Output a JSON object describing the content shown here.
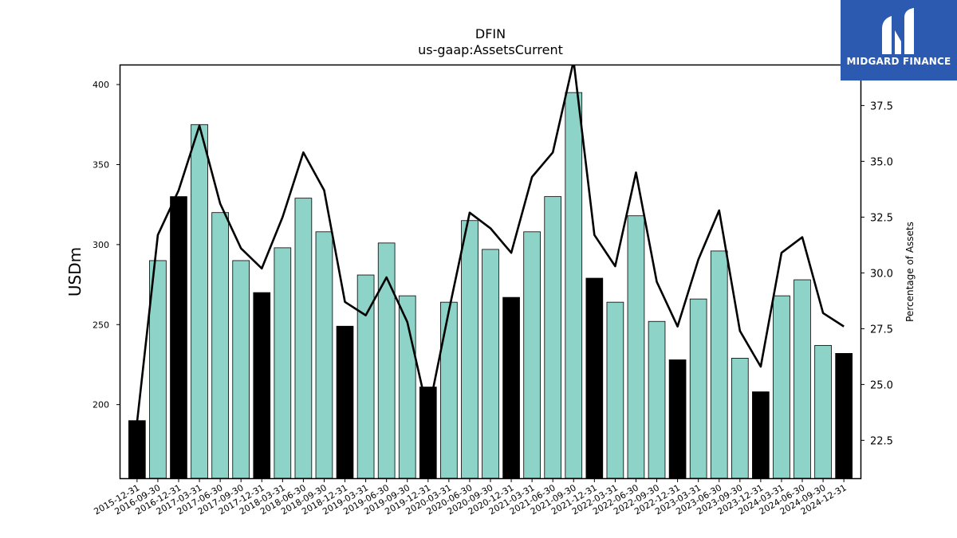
{
  "chart_data": {
    "type": "bar+line",
    "title": "DFIN",
    "subtitle": "us-gaap:AssetsCurrent",
    "ylabel": "USDm",
    "y2label": "Percentage of Assets",
    "ylim": [
      154,
      412
    ],
    "y2lim": [
      20.8,
      39.3
    ],
    "yticks": [
      200,
      250,
      300,
      350,
      400
    ],
    "y2ticks": [
      22.5,
      25.0,
      27.5,
      30.0,
      32.5,
      35.0,
      37.5
    ],
    "categories": [
      "2015-12-31",
      "2016-09-30",
      "2016-12-31",
      "2017-03-31",
      "2017-06-30",
      "2017-09-30",
      "2017-12-31",
      "2018-03-31",
      "2018-06-30",
      "2018-09-30",
      "2018-12-31",
      "2019-03-31",
      "2019-06-30",
      "2019-09-30",
      "2019-12-31",
      "2020-03-31",
      "2020-06-30",
      "2020-09-30",
      "2020-12-31",
      "2021-03-31",
      "2021-06-30",
      "2021-09-30",
      "2021-12-31",
      "2022-03-31",
      "2022-06-30",
      "2022-09-30",
      "2022-12-31",
      "2023-03-31",
      "2023-06-30",
      "2023-09-30",
      "2023-12-31",
      "2024-03-31",
      "2024-06-30",
      "2024-09-30",
      "2024-12-31"
    ],
    "series": [
      {
        "type": "bar",
        "values": [
          190,
          290,
          330,
          375,
          320,
          290,
          270,
          298,
          329,
          308,
          249,
          281,
          301,
          268,
          211,
          264,
          315,
          297,
          267,
          308,
          330,
          395,
          279,
          264,
          318,
          252,
          228,
          266,
          296,
          229,
          208,
          268,
          278,
          237,
          232
        ],
        "year_end": [
          true,
          false,
          true,
          false,
          false,
          false,
          true,
          false,
          false,
          false,
          true,
          false,
          false,
          false,
          true,
          false,
          false,
          false,
          true,
          false,
          false,
          false,
          true,
          false,
          false,
          false,
          true,
          false,
          false,
          false,
          true,
          false,
          false,
          false,
          true
        ]
      },
      {
        "type": "line",
        "axis": "right",
        "values": [
          23.3,
          31.7,
          33.7,
          36.6,
          33.1,
          31.1,
          30.2,
          32.5,
          35.4,
          33.7,
          28.7,
          28.1,
          29.8,
          27.8,
          23.7,
          28.3,
          32.7,
          32.0,
          30.9,
          34.3,
          35.4,
          39.5,
          31.7,
          30.3,
          34.5,
          29.6,
          27.6,
          30.6,
          32.8,
          27.4,
          25.8,
          30.9,
          31.6,
          28.2,
          27.6
        ]
      }
    ],
    "colors": {
      "bar": "#8dd3c7",
      "bar_year_end": "#000000",
      "line": "#000000"
    },
    "legend": "none",
    "grid": false
  },
  "logo": {
    "text": "MIDGARD FINANCE",
    "color": "#2b5ab0"
  }
}
